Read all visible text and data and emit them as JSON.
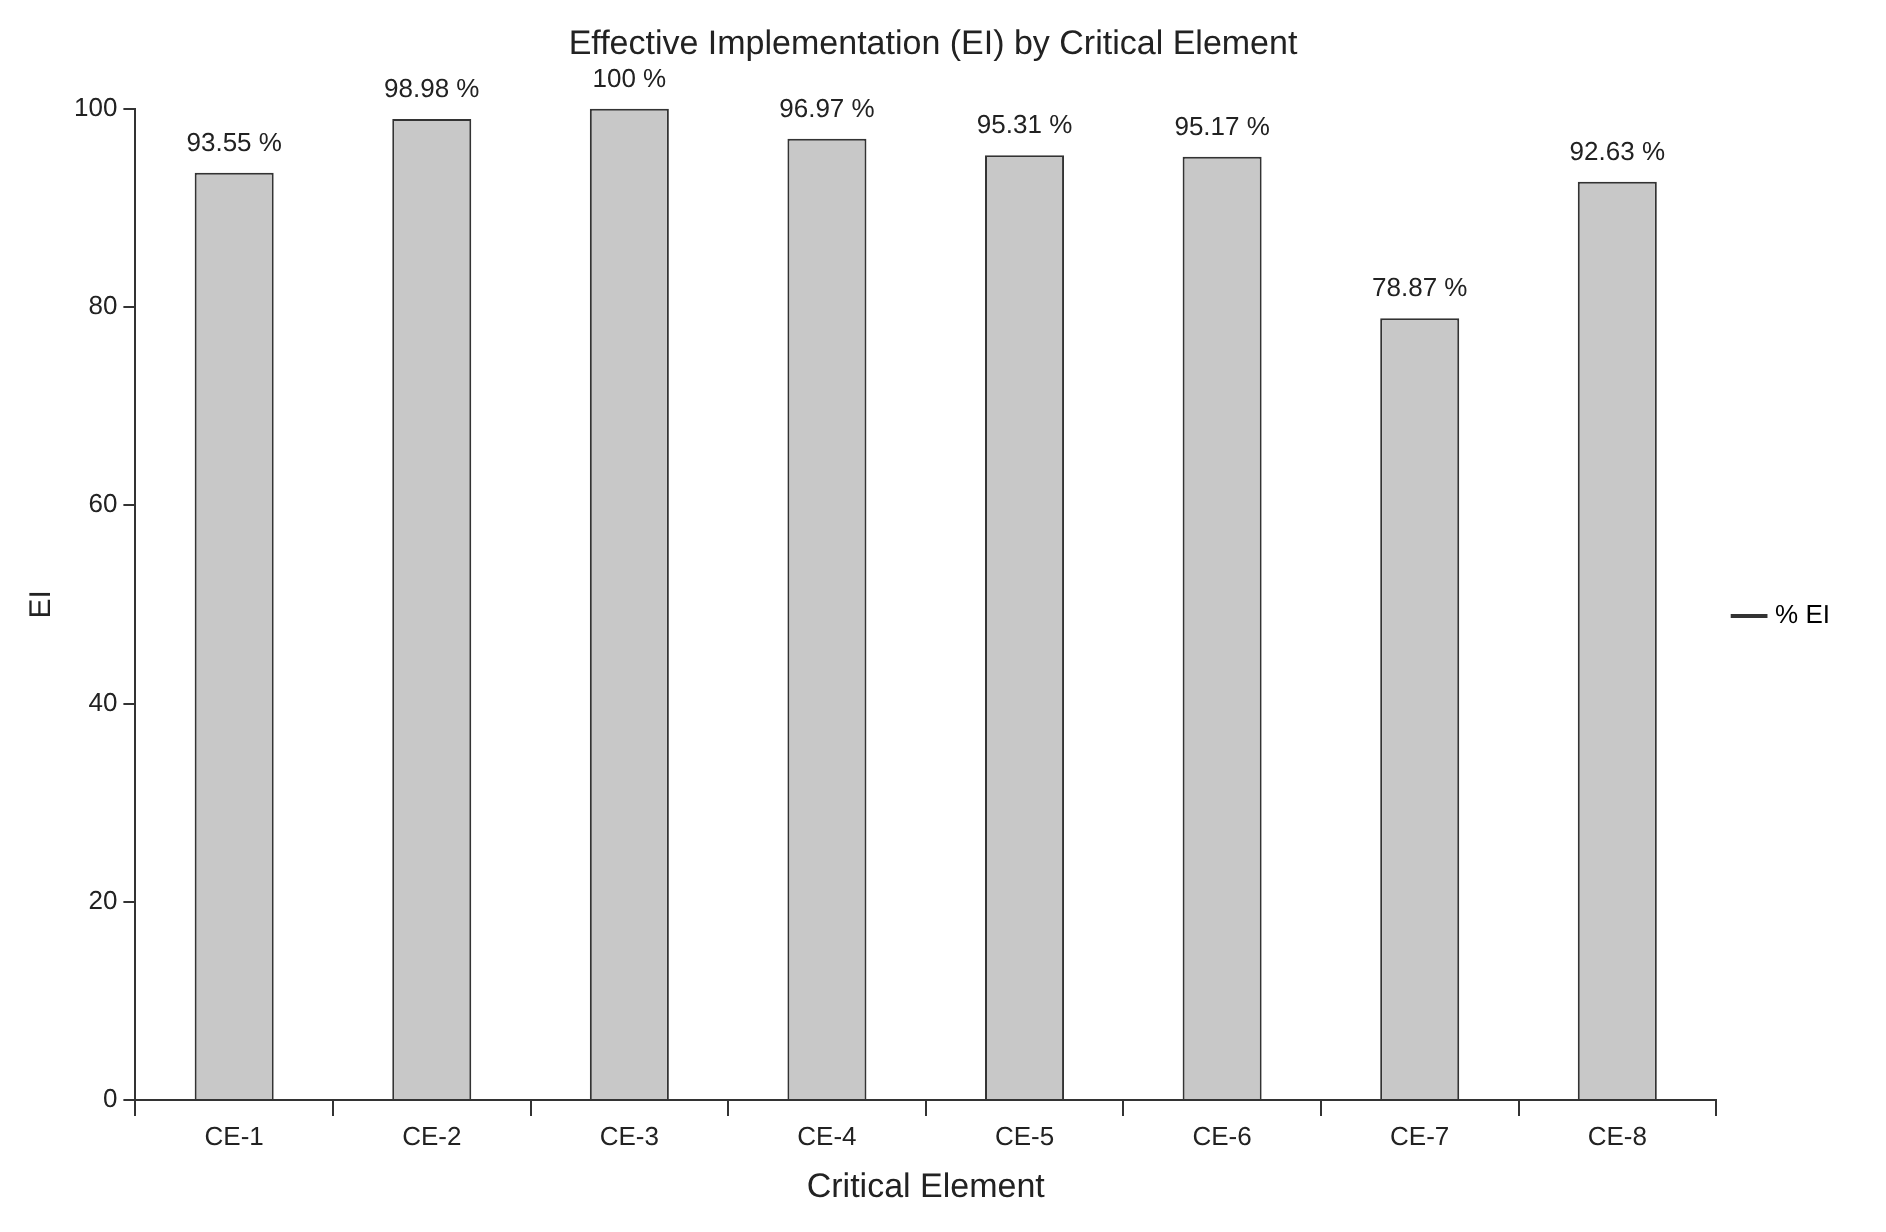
{
  "chart_data": {
    "type": "bar",
    "title": "Effective Implementation (EI) by Critical Element",
    "xlabel": "Critical Element",
    "ylabel": "EI",
    "categories": [
      "CE-1",
      "CE-2",
      "CE-3",
      "CE-4",
      "CE-5",
      "CE-6",
      "CE-7",
      "CE-8"
    ],
    "series": [
      {
        "name": "% EI",
        "color": "#c8c8c8",
        "values": [
          93.55,
          98.98,
          100,
          96.97,
          95.31,
          95.17,
          78.87,
          92.63
        ]
      }
    ],
    "value_labels": [
      "93.55 %",
      "98.98 %",
      "100 %",
      "96.97 %",
      "95.31 %",
      "95.17 %",
      "78.87 %",
      "92.63 %"
    ],
    "ylim": [
      0,
      100
    ],
    "yticks": [
      0,
      20,
      40,
      60,
      80,
      100
    ],
    "legend": "right"
  }
}
